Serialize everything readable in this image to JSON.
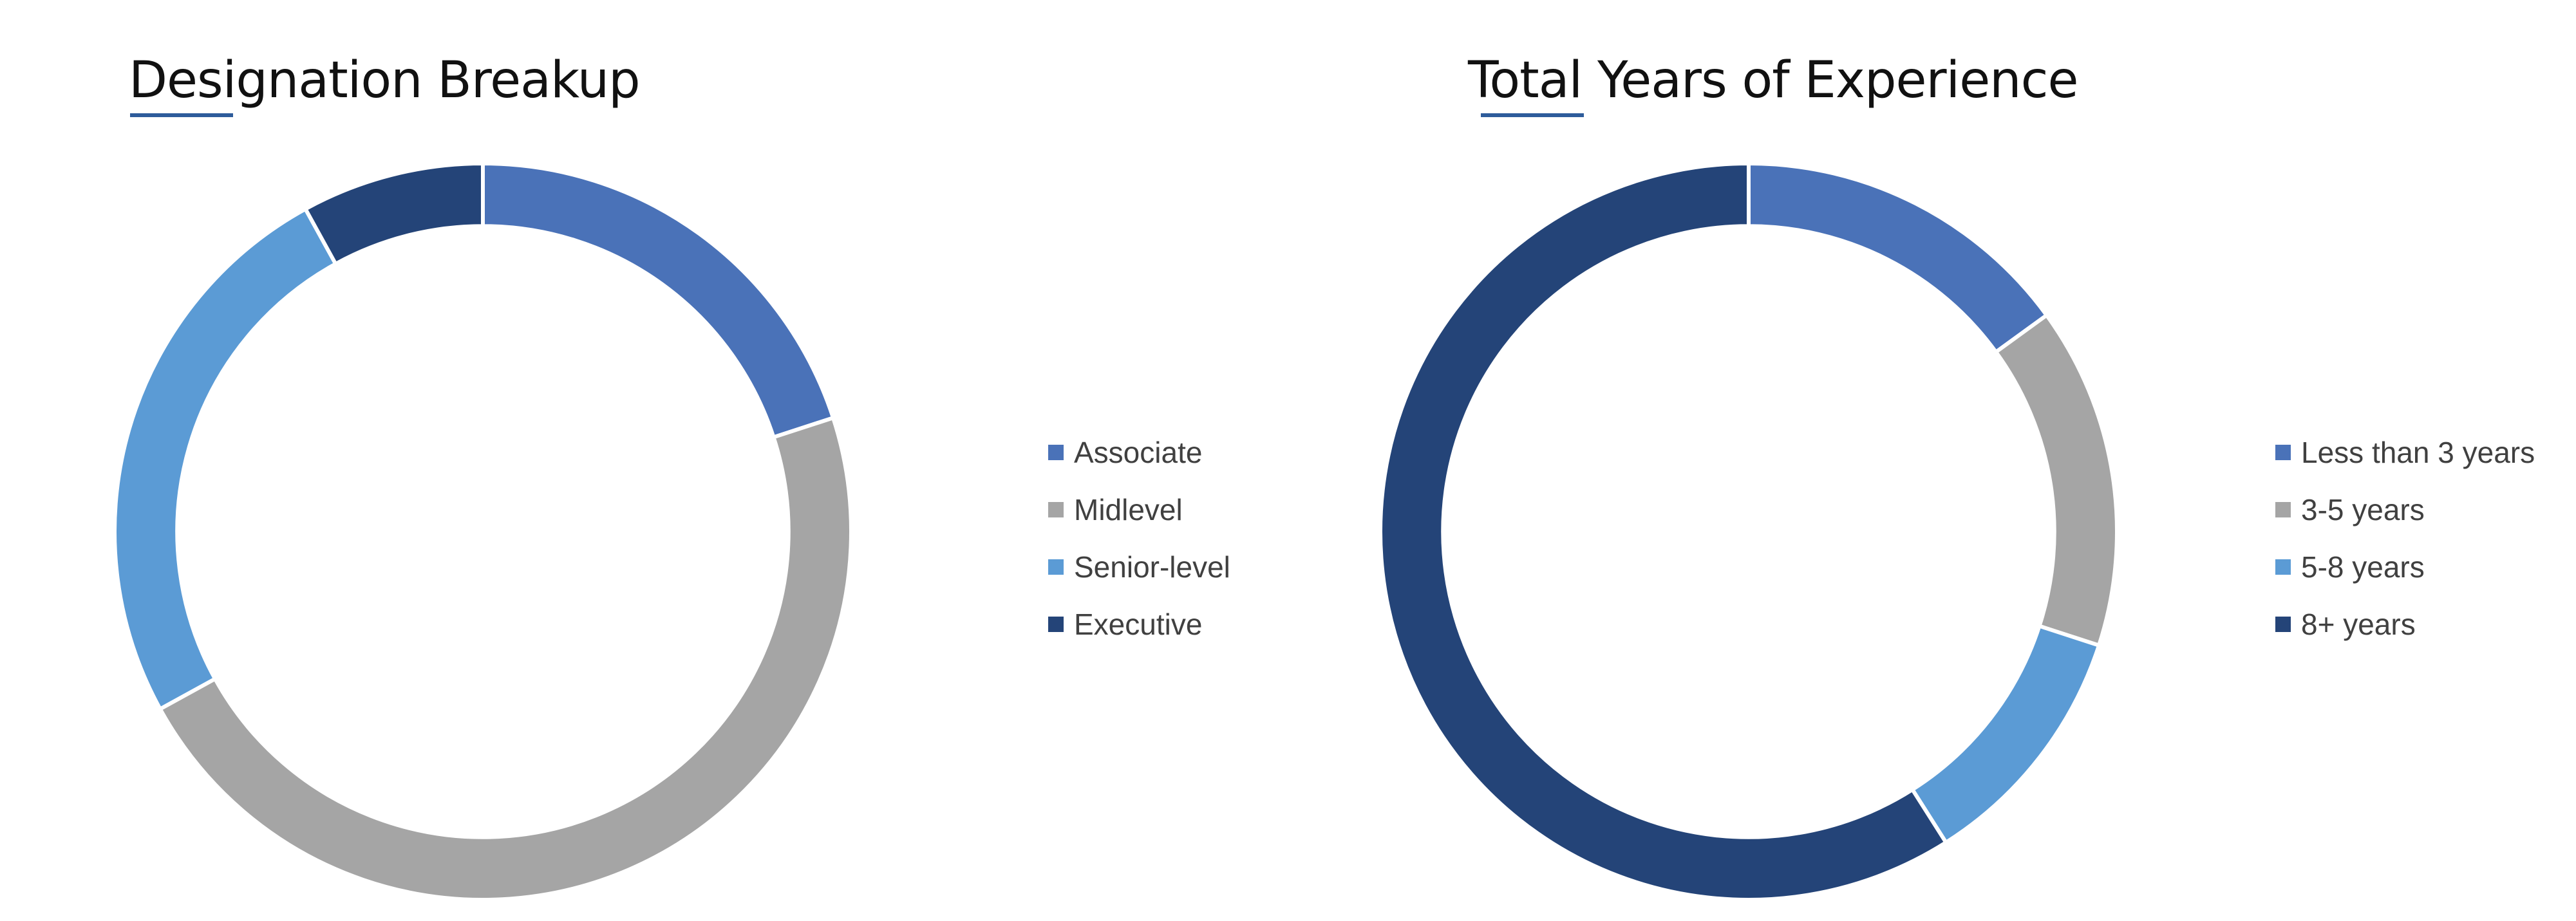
{
  "chart_data": [
    {
      "type": "pie",
      "title": "Designation Breakup",
      "categories": [
        "Associate",
        "Midlevel",
        "Senior-level",
        "Executive"
      ],
      "values": [
        20,
        47,
        25,
        8
      ],
      "colors": [
        "#4a72b8",
        "#a5a5a5",
        "#5b9bd5",
        "#244478"
      ],
      "hole": 0.83,
      "legend_position": "right"
    },
    {
      "type": "pie",
      "title": "Total Years of Experience",
      "categories": [
        "Less than 3 years",
        "3-5 years",
        "5-8 years",
        "8+ years"
      ],
      "values": [
        15,
        15,
        11,
        59
      ],
      "colors": [
        "#4a72b8",
        "#a5a5a5",
        "#5b9bd5",
        "#244478"
      ],
      "hole": 0.83,
      "legend_position": "right"
    }
  ]
}
